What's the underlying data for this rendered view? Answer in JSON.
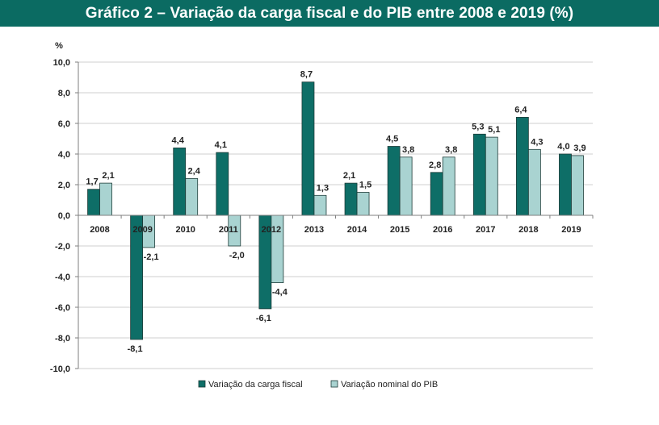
{
  "title": "Gráfico 2 – Variação da carga fiscal e do PIB entre 2008 e 2019 (%)",
  "colors": {
    "header": "#0b6b62",
    "series1": "#0e6e67",
    "series2": "#a9d3d1",
    "grid": "#cfcfcf",
    "axis": "#7f7f7f"
  },
  "chart_data": {
    "type": "bar",
    "ylabel": "%",
    "ylim": [
      -10,
      10
    ],
    "ytick_step": 2,
    "ytick_labels": [
      "10,0",
      "8,0",
      "6,0",
      "4,0",
      "2,0",
      "0,0",
      "-2,0",
      "-4,0",
      "-6,0",
      "-8,0",
      "-10,0"
    ],
    "categories": [
      "2008",
      "2009",
      "2010",
      "2011",
      "2012",
      "2013",
      "2014",
      "2015",
      "2016",
      "2017",
      "2018",
      "2019"
    ],
    "series": [
      {
        "name": "Variação da carga fiscal",
        "values": [
          1.7,
          -8.1,
          4.4,
          4.1,
          -6.1,
          8.7,
          2.1,
          4.5,
          2.8,
          5.3,
          6.4,
          4.0
        ],
        "labels": [
          "1,7",
          "-8,1",
          "4,4",
          "4,1",
          "-6,1",
          "8,7",
          "2,1",
          "4,5",
          "2,8",
          "5,3",
          "6,4",
          "4,0"
        ]
      },
      {
        "name": "Variação nominal do PIB",
        "values": [
          2.1,
          -2.1,
          2.4,
          -2.0,
          -4.4,
          1.3,
          1.5,
          3.8,
          3.8,
          5.1,
          4.3,
          3.9
        ],
        "labels": [
          "2,1",
          "-2,1",
          "2,4",
          "-2,0",
          "-4,4",
          "1,3",
          "1,5",
          "3,8",
          "3,8",
          "5,1",
          "4,3",
          "3,9"
        ]
      }
    ]
  }
}
